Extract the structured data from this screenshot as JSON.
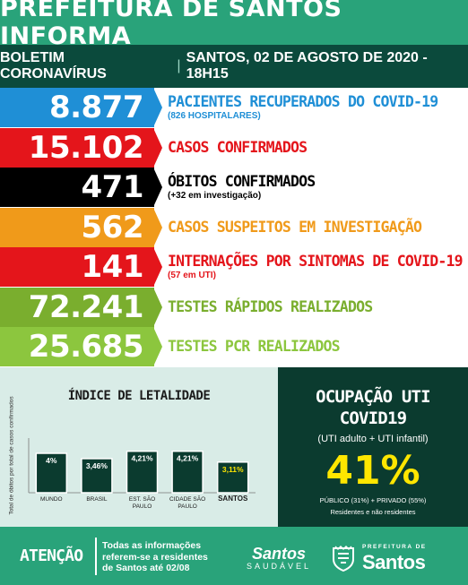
{
  "header": {
    "title": "PREFEITURA DE SANTOS INFORMA"
  },
  "subheader": {
    "left": "BOLETIM CORONAVÍRUS",
    "separator": "|",
    "right": "SANTOS, 02 DE AGOSTO DE 2020 - 18H15"
  },
  "stats": [
    {
      "value": "8.877",
      "label": "PACIENTES RECUPERADOS DO COVID-19",
      "sub": "(826 HOSPITALARES)",
      "box_color": "#1f8fd6",
      "label_color": "#1f8fd6"
    },
    {
      "value": "15.102",
      "label": "CASOS CONFIRMADOS",
      "sub": "",
      "box_color": "#e4151b",
      "label_color": "#e4151b"
    },
    {
      "value": "471",
      "label": "ÓBITOS CONFIRMADOS",
      "sub": "(+32 em investigação)",
      "box_color": "#000000",
      "label_color": "#000000"
    },
    {
      "value": "562",
      "label": "CASOS SUSPEITOS EM INVESTIGAÇÃO",
      "sub": "",
      "box_color": "#f09a1a",
      "label_color": "#f09a1a"
    },
    {
      "value": "141",
      "label": "INTERNAÇÕES POR SINTOMAS DE COVID-19",
      "sub": "(57 em UTI)",
      "box_color": "#e4151b",
      "label_color": "#e4151b"
    },
    {
      "value": "72.241",
      "label": "TESTES RÁPIDOS REALIZADOS",
      "sub": "",
      "box_color": "#7aae2e",
      "label_color": "#7aae2e"
    },
    {
      "value": "25.685",
      "label": "TESTES PCR REALIZADOS",
      "sub": "",
      "box_color": "#8cc63e",
      "label_color": "#8cc63e"
    }
  ],
  "chart": {
    "title": "ÍNDICE DE LETALIDADE",
    "ylabel": "Total de óbitos por total de casos confirmados"
  },
  "chart_data": {
    "type": "bar",
    "title": "ÍNDICE DE LETALIDADE",
    "ylabel": "Total de óbitos por total de casos confirmados",
    "categories": [
      "MUNDO",
      "BRASIL",
      "EST. SÃO PAULO",
      "CIDADE SÃO PAULO",
      "SANTOS"
    ],
    "values": [
      4,
      3.46,
      4.21,
      4.21,
      3.11
    ],
    "value_labels": [
      "4%",
      "3,46%",
      "4,21%",
      "4,21%",
      "3,11%"
    ],
    "ylim": [
      0,
      5
    ],
    "bar_colors": [
      "#0b3b2f",
      "#0b3b2f",
      "#0b3b2f",
      "#0b3b2f",
      "#0b3b2f"
    ],
    "label_colors": [
      "#ffffff",
      "#ffffff",
      "#ffffff",
      "#ffffff",
      "#ffe600"
    ]
  },
  "uti": {
    "title1": "OCUPAÇÃO UTI",
    "title2": "COVID19",
    "desc": "(UTI adulto + UTI infantil)",
    "percent": "41%",
    "breakdown": "PÚBLICO (31%) + PRIVADO (55%)",
    "note": "Residentes e não residentes"
  },
  "footer": {
    "attention": "ATENÇÃO",
    "note_lines": [
      "Todas as informações",
      "referem-se a residentes",
      "de Santos até 02/08"
    ],
    "logo1_top": "Santos",
    "logo1_bottom": "SAUDÁVEL",
    "logo2_small": "PREFEITURA DE",
    "logo2_big": "Santos"
  }
}
